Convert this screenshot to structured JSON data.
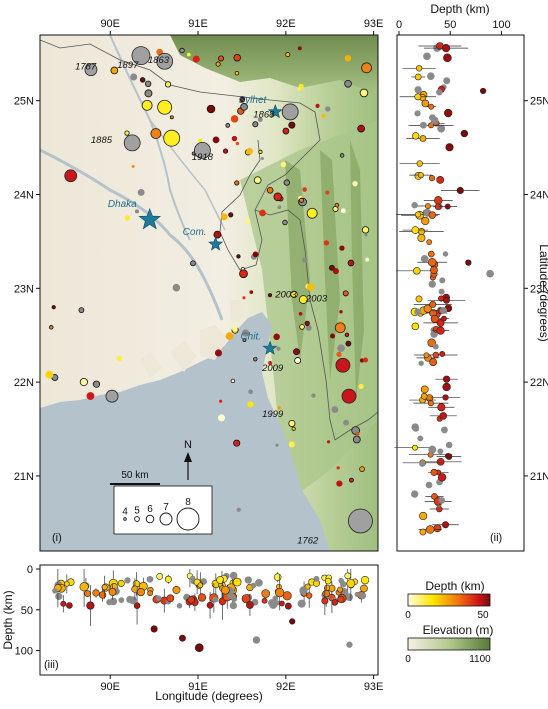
{
  "map": {
    "lon_ticks": [
      "90E",
      "91E",
      "92E",
      "93E"
    ],
    "lat_ticks": [
      "25N",
      "24N",
      "23N",
      "22N",
      "21N"
    ],
    "panel_label": "(i)",
    "cities": [
      {
        "name": "Dhaka",
        "lon": 90.45,
        "lat": 23.73,
        "size": 11
      },
      {
        "name": "Com.",
        "lon": 91.2,
        "lat": 23.47,
        "size": 7
      },
      {
        "name": "Sylhet",
        "lon": 91.88,
        "lat": 24.88,
        "size": 7
      },
      {
        "name": "Chit.",
        "lon": 91.82,
        "lat": 22.36,
        "size": 7
      }
    ],
    "years": [
      {
        "text": "1787",
        "lon": 89.72,
        "lat": 25.33
      },
      {
        "text": "1897",
        "lon": 90.2,
        "lat": 25.35
      },
      {
        "text": "1863",
        "lon": 90.55,
        "lat": 25.4
      },
      {
        "text": "1868",
        "lon": 91.75,
        "lat": 24.82
      },
      {
        "text": "1885",
        "lon": 89.9,
        "lat": 24.55
      },
      {
        "text": "1918",
        "lon": 91.05,
        "lat": 24.37
      },
      {
        "text": "2003",
        "lon": 92.0,
        "lat": 22.9
      },
      {
        "text": "2003",
        "lon": 92.35,
        "lat": 22.86
      },
      {
        "text": "2009",
        "lon": 91.85,
        "lat": 22.12
      },
      {
        "text": "1999",
        "lon": 91.85,
        "lat": 21.63
      },
      {
        "text": "1762",
        "lon": 92.25,
        "lat": 20.28
      }
    ],
    "scale_bar": "50 km",
    "north": "N",
    "magnitude_legend": [
      "4",
      "5",
      "6",
      "7",
      "8"
    ]
  },
  "depth_lat_panel": {
    "title": "Depth (km)",
    "ticks": [
      "0",
      "50",
      "100"
    ],
    "ylabel": "Latitude (degrees)",
    "lat_ticks": [
      "25N",
      "24N",
      "23N",
      "22N",
      "21N"
    ],
    "panel_label": "(ii)"
  },
  "depth_lon_panel": {
    "ylabel": "Depth (km)",
    "yticks": [
      "0",
      "50",
      "100"
    ],
    "xlabel": "Longitude (degrees)",
    "lon_ticks": [
      "90E",
      "91E",
      "92E",
      "93E"
    ],
    "panel_label": "(iii)"
  },
  "colorbars": {
    "depth_title": "Depth (km)",
    "depth_min": "0",
    "depth_max": "50",
    "elev_title": "Elevation (m)",
    "elev_min": "0",
    "elev_max": "1100"
  },
  "colors": {
    "water": "#b4c2cc",
    "depth_low": "#ffff30",
    "depth_high": "#8b0a10",
    "gray_event": "#8a8a8a",
    "city_star": "#1d7a9a"
  }
}
